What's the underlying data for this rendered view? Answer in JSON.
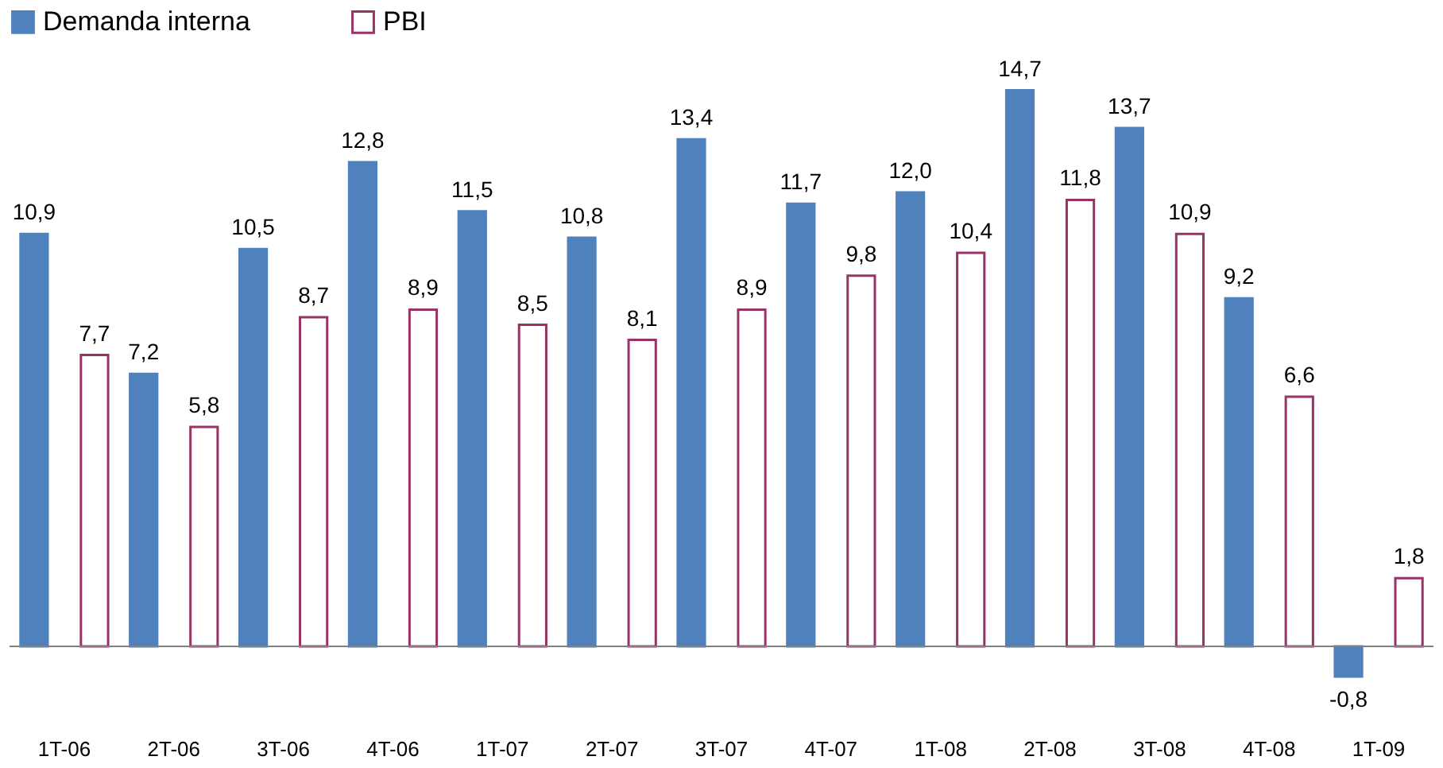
{
  "chart_data": {
    "type": "bar",
    "categories": [
      "1T-06",
      "2T-06",
      "3T-06",
      "4T-06",
      "1T-07",
      "2T-07",
      "3T-07",
      "4T-07",
      "1T-08",
      "2T-08",
      "3T-08",
      "4T-08",
      "1T-09"
    ],
    "series": [
      {
        "name": "Demanda interna",
        "color": "#4f81bd",
        "values": [
          10.9,
          7.2,
          10.5,
          12.8,
          11.5,
          10.8,
          13.4,
          11.7,
          12.0,
          14.7,
          13.7,
          9.2,
          -0.8
        ],
        "value_labels": [
          "10,9",
          "7,2",
          "10,5",
          "12,8",
          "11,5",
          "10,8",
          "13,4",
          "11,7",
          "12,0",
          "14,7",
          "13,7",
          "9,2",
          "-0,8"
        ]
      },
      {
        "name": "PBI",
        "color": "#993366",
        "values": [
          7.7,
          5.8,
          8.7,
          8.9,
          8.5,
          8.1,
          8.9,
          9.8,
          10.4,
          11.8,
          10.9,
          6.6,
          1.8
        ],
        "value_labels": [
          "7,7",
          "5,8",
          "8,7",
          "8,9",
          "8,5",
          "8,1",
          "8,9",
          "9,8",
          "10,4",
          "11,8",
          "10,9",
          "6,6",
          "1,8"
        ]
      }
    ],
    "ref_lines": [
      {
        "axis": "y",
        "value": 0,
        "color": "#808080"
      }
    ],
    "legend": "top"
  }
}
